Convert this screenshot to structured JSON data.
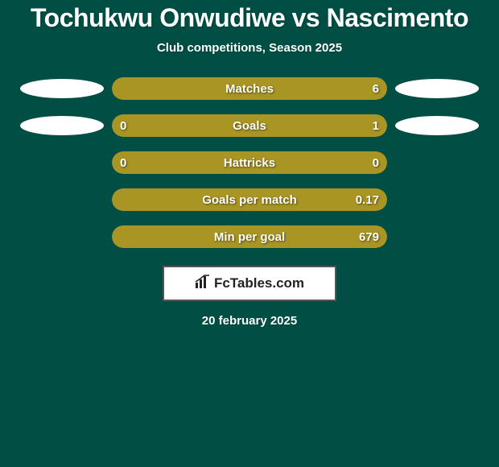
{
  "title": "Tochukwu Onwudiwe vs Nascimento",
  "subtitle": "Club competitions, Season 2025",
  "date": "20 february 2025",
  "logo_text": "FcTables.com",
  "colors": {
    "background": "#004e44",
    "title_color": "#ffffff",
    "subtitle_color": "#ffffff",
    "bar_left_color": "#a99523",
    "bar_right_color": "#a99523",
    "bar_track_color": "#a99523",
    "bar_text_color": "#ffffff",
    "ellipse_color": "#ffffff",
    "date_color": "#ffffff"
  },
  "rows": [
    {
      "label": "Matches",
      "left": "",
      "right": "6",
      "left_pct": 0,
      "right_pct": 100,
      "show_left_ellipse": true,
      "show_right_ellipse": true
    },
    {
      "label": "Goals",
      "left": "0",
      "right": "1",
      "left_pct": 18,
      "right_pct": 82,
      "show_left_ellipse": true,
      "show_right_ellipse": true
    },
    {
      "label": "Hattricks",
      "left": "0",
      "right": "0",
      "left_pct": 0,
      "right_pct": 100,
      "show_left_ellipse": false,
      "show_right_ellipse": false
    },
    {
      "label": "Goals per match",
      "left": "",
      "right": "0.17",
      "left_pct": 0,
      "right_pct": 100,
      "show_left_ellipse": false,
      "show_right_ellipse": false
    },
    {
      "label": "Min per goal",
      "left": "",
      "right": "679",
      "left_pct": 0,
      "right_pct": 100,
      "show_left_ellipse": false,
      "show_right_ellipse": false
    }
  ]
}
